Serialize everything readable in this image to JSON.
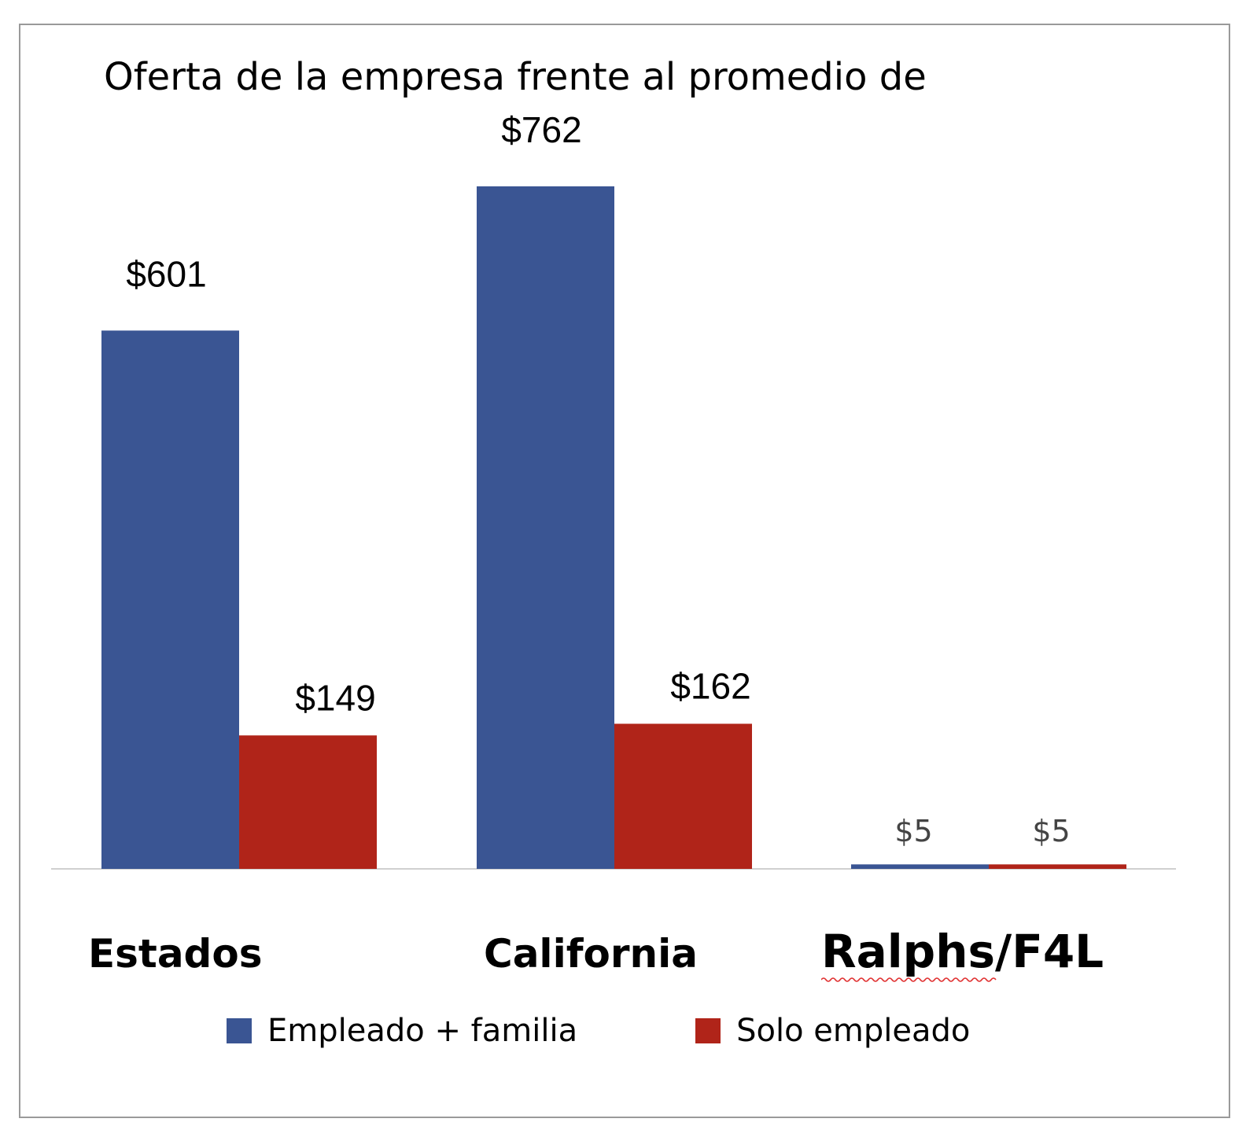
{
  "colors": {
    "series_0": "#3a5593",
    "series_1": "#b02419",
    "axis": "#d0d0d0"
  },
  "chart_data": {
    "type": "bar",
    "title": "Oferta de la empresa frente al promedio de",
    "categories": [
      "Estados",
      "California",
      "Ralphs/F4L"
    ],
    "series": [
      {
        "name": "Empleado + familia",
        "values": [
          601,
          762,
          5
        ],
        "labels": [
          "$601",
          "$762",
          "$5"
        ]
      },
      {
        "name": "Solo empleado",
        "values": [
          149,
          162,
          5
        ],
        "labels": [
          "$149",
          "$162",
          "$5"
        ]
      }
    ],
    "ylim": [
      0,
      762
    ],
    "grid": false,
    "legend": "bottom"
  }
}
